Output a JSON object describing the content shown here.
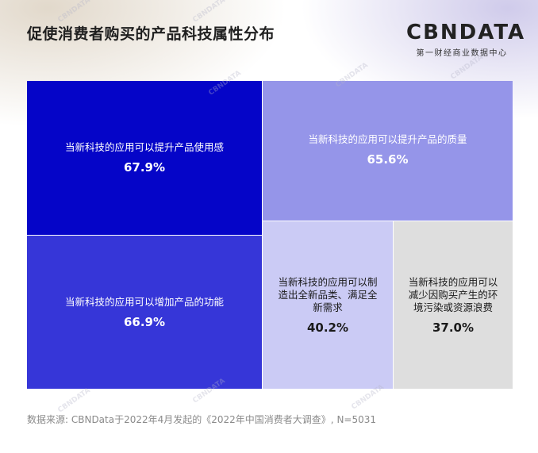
{
  "header": {
    "title": "促使消费者购买的产品科技属性分布"
  },
  "brand": {
    "logo": "CBNDATA",
    "subtitle": "第一财经商业数据中心"
  },
  "chart_data": {
    "type": "treemap",
    "unit": "%",
    "items": [
      {
        "label": "当新科技的应用可以提升产品使用感",
        "value": 67.9,
        "value_label": "67.9%",
        "color": "#0505c8",
        "text_color": "#ffffff"
      },
      {
        "label": "当新科技的应用可以增加产品的功能",
        "value": 66.9,
        "value_label": "66.9%",
        "color": "#3636d8",
        "text_color": "#ffffff"
      },
      {
        "label": "当新科技的应用可以提升产品的质量",
        "value": 65.6,
        "value_label": "65.6%",
        "color": "#9595e9",
        "text_color": "#ffffff"
      },
      {
        "label": "当新科技的应用可以制造出全新品类、满足全新需求",
        "value": 40.2,
        "value_label": "40.2%",
        "color": "#cbcbf5",
        "text_color": "#1a1a1a"
      },
      {
        "label": "当新科技的应用可以减少因购买产生的环境污染或资源浪费",
        "value": 37.0,
        "value_label": "37.0%",
        "color": "#dedede",
        "text_color": "#1a1a1a"
      }
    ]
  },
  "footer": {
    "source": "数据来源: CBNData于2022年4月发起的《2022年中国消费者大调查》, N=5031"
  },
  "watermark": "CBNDATA"
}
